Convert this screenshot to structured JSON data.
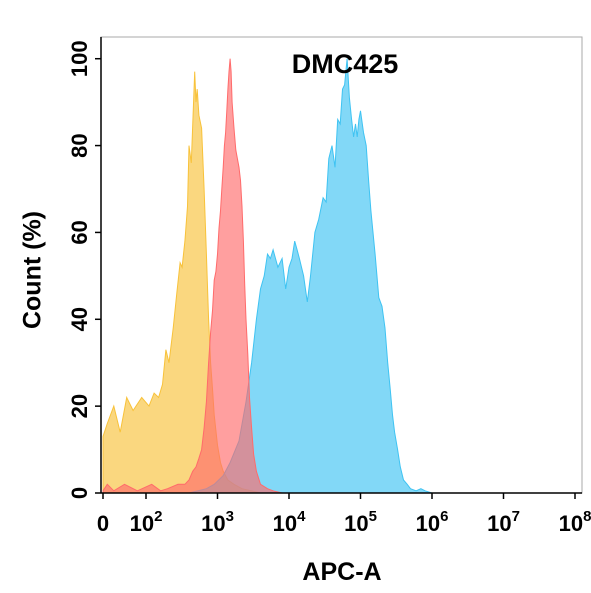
{
  "chart_data": {
    "type": "area",
    "title": "DMC425",
    "xlabel": "APC-A",
    "ylabel": "Count  (%)",
    "x_scale": "log",
    "xlim": [
      0,
      100000000
    ],
    "ylim": [
      0,
      105
    ],
    "x_ticks": [
      {
        "value": 0,
        "label": "0",
        "exp": ""
      },
      {
        "value": 100,
        "label": "10",
        "exp": "2"
      },
      {
        "value": 1000,
        "label": "10",
        "exp": "3"
      },
      {
        "value": 10000,
        "label": "10",
        "exp": "4"
      },
      {
        "value": 100000,
        "label": "10",
        "exp": "5"
      },
      {
        "value": 1000000,
        "label": "10",
        "exp": "6"
      },
      {
        "value": 10000000,
        "label": "10",
        "exp": "7"
      },
      {
        "value": 100000000,
        "label": "10",
        "exp": "8"
      }
    ],
    "y_ticks": [
      0,
      20,
      40,
      60,
      80,
      100
    ],
    "grid": false,
    "legend": "none",
    "series": [
      {
        "color": "#F8C23A",
        "fill_opacity": 0.65,
        "points": [
          [
            0,
            13
          ],
          [
            10,
            16
          ],
          [
            25,
            20
          ],
          [
            40,
            14
          ],
          [
            55,
            22
          ],
          [
            70,
            19
          ],
          [
            90,
            22
          ],
          [
            110,
            20
          ],
          [
            130,
            23
          ],
          [
            150,
            22
          ],
          [
            170,
            25
          ],
          [
            190,
            33
          ],
          [
            210,
            30
          ],
          [
            240,
            38
          ],
          [
            270,
            46
          ],
          [
            300,
            53
          ],
          [
            320,
            52
          ],
          [
            350,
            58
          ],
          [
            380,
            66
          ],
          [
            400,
            80
          ],
          [
            430,
            76
          ],
          [
            460,
            89
          ],
          [
            480,
            97
          ],
          [
            500,
            90
          ],
          [
            520,
            93
          ],
          [
            550,
            87
          ],
          [
            600,
            84
          ],
          [
            650,
            70
          ],
          [
            700,
            55
          ],
          [
            750,
            40
          ],
          [
            800,
            30
          ],
          [
            850,
            24
          ],
          [
            900,
            18
          ],
          [
            1000,
            11
          ],
          [
            1100,
            7
          ],
          [
            1200,
            5
          ],
          [
            1400,
            3
          ],
          [
            1700,
            2
          ],
          [
            2200,
            1
          ],
          [
            3000,
            0.5
          ],
          [
            4000,
            0
          ]
        ]
      },
      {
        "color": "#3FC3F2",
        "fill_opacity": 0.65,
        "points": [
          [
            400,
            0
          ],
          [
            700,
            1
          ],
          [
            900,
            2
          ],
          [
            1200,
            4
          ],
          [
            1500,
            7
          ],
          [
            2000,
            12
          ],
          [
            2500,
            21
          ],
          [
            3000,
            30
          ],
          [
            3500,
            40
          ],
          [
            4000,
            47
          ],
          [
            4500,
            50
          ],
          [
            5000,
            55
          ],
          [
            5500,
            54
          ],
          [
            6000,
            56
          ],
          [
            7000,
            52
          ],
          [
            8000,
            54
          ],
          [
            9000,
            47
          ],
          [
            10000,
            52
          ],
          [
            11000,
            54
          ],
          [
            12000,
            58
          ],
          [
            13000,
            56
          ],
          [
            14000,
            54
          ],
          [
            16000,
            50
          ],
          [
            18000,
            44
          ],
          [
            20000,
            50
          ],
          [
            23000,
            60
          ],
          [
            26000,
            63
          ],
          [
            30000,
            68
          ],
          [
            33000,
            67
          ],
          [
            36000,
            77
          ],
          [
            40000,
            80
          ],
          [
            44000,
            75
          ],
          [
            48000,
            86
          ],
          [
            52000,
            85
          ],
          [
            56000,
            93
          ],
          [
            60000,
            94
          ],
          [
            65000,
            100
          ],
          [
            70000,
            91
          ],
          [
            75000,
            86
          ],
          [
            80000,
            82
          ],
          [
            85000,
            85
          ],
          [
            90000,
            82
          ],
          [
            95000,
            86
          ],
          [
            100000,
            88
          ],
          [
            110000,
            83
          ],
          [
            120000,
            80
          ],
          [
            130000,
            72
          ],
          [
            140000,
            65
          ],
          [
            160000,
            55
          ],
          [
            180000,
            45
          ],
          [
            200000,
            43
          ],
          [
            220000,
            38
          ],
          [
            240000,
            30
          ],
          [
            260000,
            24
          ],
          [
            280000,
            18
          ],
          [
            300000,
            14
          ],
          [
            330000,
            10
          ],
          [
            360000,
            6
          ],
          [
            400000,
            3
          ],
          [
            450000,
            2
          ],
          [
            500000,
            1
          ],
          [
            600000,
            0.5
          ],
          [
            700000,
            1
          ],
          [
            800000,
            0.5
          ],
          [
            1000000,
            0
          ]
        ]
      },
      {
        "color": "#FF6B6B",
        "fill_opacity": 0.65,
        "points": [
          [
            0,
            0.5
          ],
          [
            10,
            2
          ],
          [
            25,
            0.5
          ],
          [
            50,
            2
          ],
          [
            80,
            0.5
          ],
          [
            120,
            2
          ],
          [
            160,
            0.5
          ],
          [
            200,
            1
          ],
          [
            280,
            2
          ],
          [
            350,
            2
          ],
          [
            400,
            3
          ],
          [
            450,
            5
          ],
          [
            500,
            6
          ],
          [
            550,
            8
          ],
          [
            600,
            10
          ],
          [
            650,
            15
          ],
          [
            700,
            21
          ],
          [
            750,
            30
          ],
          [
            800,
            37
          ],
          [
            850,
            42
          ],
          [
            900,
            49
          ],
          [
            950,
            51
          ],
          [
            1000,
            55
          ],
          [
            1050,
            61
          ],
          [
            1100,
            65
          ],
          [
            1150,
            70
          ],
          [
            1200,
            75
          ],
          [
            1250,
            80
          ],
          [
            1300,
            83
          ],
          [
            1350,
            88
          ],
          [
            1400,
            93
          ],
          [
            1450,
            97
          ],
          [
            1500,
            100
          ],
          [
            1550,
            97
          ],
          [
            1600,
            90
          ],
          [
            1700,
            84
          ],
          [
            1800,
            79
          ],
          [
            1900,
            77
          ],
          [
            2000,
            75
          ],
          [
            2100,
            72
          ],
          [
            2200,
            66
          ],
          [
            2300,
            58
          ],
          [
            2400,
            48
          ],
          [
            2500,
            40
          ],
          [
            2650,
            32
          ],
          [
            2800,
            22
          ],
          [
            3000,
            15
          ],
          [
            3200,
            9
          ],
          [
            3500,
            5
          ],
          [
            4000,
            2
          ],
          [
            5000,
            1
          ],
          [
            6000,
            0.5
          ],
          [
            8000,
            0
          ]
        ]
      }
    ]
  }
}
